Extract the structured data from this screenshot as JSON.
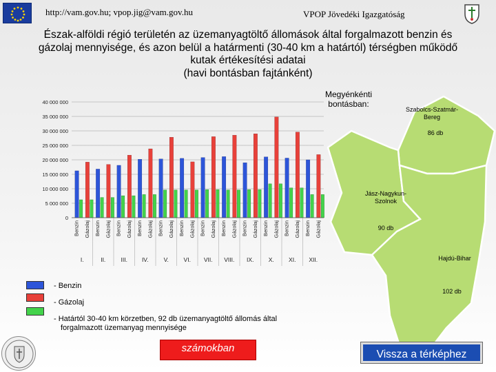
{
  "header": {
    "url_text": "http://vam.gov.hu; vpop.jig@vam.gov.hu",
    "org_text": "VPOP Jövedéki Igazgatóság"
  },
  "title": {
    "line1": "Észak-alföldi régió területén az üzemanyagtöltő állomások által forgalmazott benzin és",
    "line2": "gázolaj mennyisége, és azon belül a határmenti (30-40 km a határtól) térségben működő",
    "line3": "kutak értékesítési adatai",
    "line4": "(havi bontásban fajtánként)"
  },
  "map": {
    "heading_line1": "Megyénkénti",
    "heading_line2": "bontásban:",
    "counties": [
      {
        "name_line1": "Szabolcs-Szatmár-",
        "name_line2": "Bereg",
        "count": "86 db"
      },
      {
        "name_line1": "Jász-Nagykun-",
        "name_line2": "Szolnok",
        "count": "90 db"
      },
      {
        "name_line1": "Hajdú-Bihar",
        "name_line2": "",
        "count": "102 db"
      }
    ],
    "fill_color": "#b7dc73"
  },
  "legend": {
    "benzin": "- Benzin",
    "gazolaj": "- Gázolaj",
    "hatar_line1": "- Határtól 30-40 km körzetben, 92 db üzemanyagtöltő állomás által",
    "hatar_line2": "forgalmazott üzemanyag mennyisége"
  },
  "buttons": {
    "numbers": "számokban",
    "back_to_map": "Vissza a térképhez"
  },
  "chart_data": {
    "type": "bar",
    "categories": [
      "I.",
      "II.",
      "III.",
      "IV.",
      "V.",
      "VI.",
      "VII.",
      "VIII.",
      "IX.",
      "X.",
      "XI.",
      "XII."
    ],
    "bar_labels": [
      "Benzin",
      "Gázolaj"
    ],
    "ylim": [
      0,
      40000000
    ],
    "yticks": [
      0,
      5000000,
      10000000,
      15000000,
      20000000,
      25000000,
      30000000,
      35000000,
      40000000
    ],
    "ytick_labels": [
      "0",
      "5 000 000",
      "10 000 000",
      "15 000 000",
      "20 000 000",
      "25 000 000",
      "30 000 000",
      "35 000 000",
      "40 000 000"
    ],
    "series": [
      {
        "name": "Benzin",
        "color": "#2d55d9",
        "values": [
          16200000,
          16800000,
          18100000,
          20200000,
          20300000,
          20500000,
          20800000,
          21100000,
          19000000,
          21000000,
          20600000,
          20000000
        ]
      },
      {
        "name": "Gázolaj",
        "color": "#e8413a",
        "values": [
          19200000,
          18400000,
          21600000,
          23800000,
          27800000,
          19300000,
          28000000,
          28500000,
          29000000,
          34800000,
          29600000,
          21800000
        ]
      },
      {
        "name": "Határtól 30-40 km",
        "color": "#43d34b",
        "values": [
          6200000,
          7000000,
          7600000,
          8000000,
          9600000,
          9600000,
          9700000,
          9600000,
          9700000,
          11700000,
          10300000,
          8000000
        ]
      }
    ],
    "grid": true
  }
}
